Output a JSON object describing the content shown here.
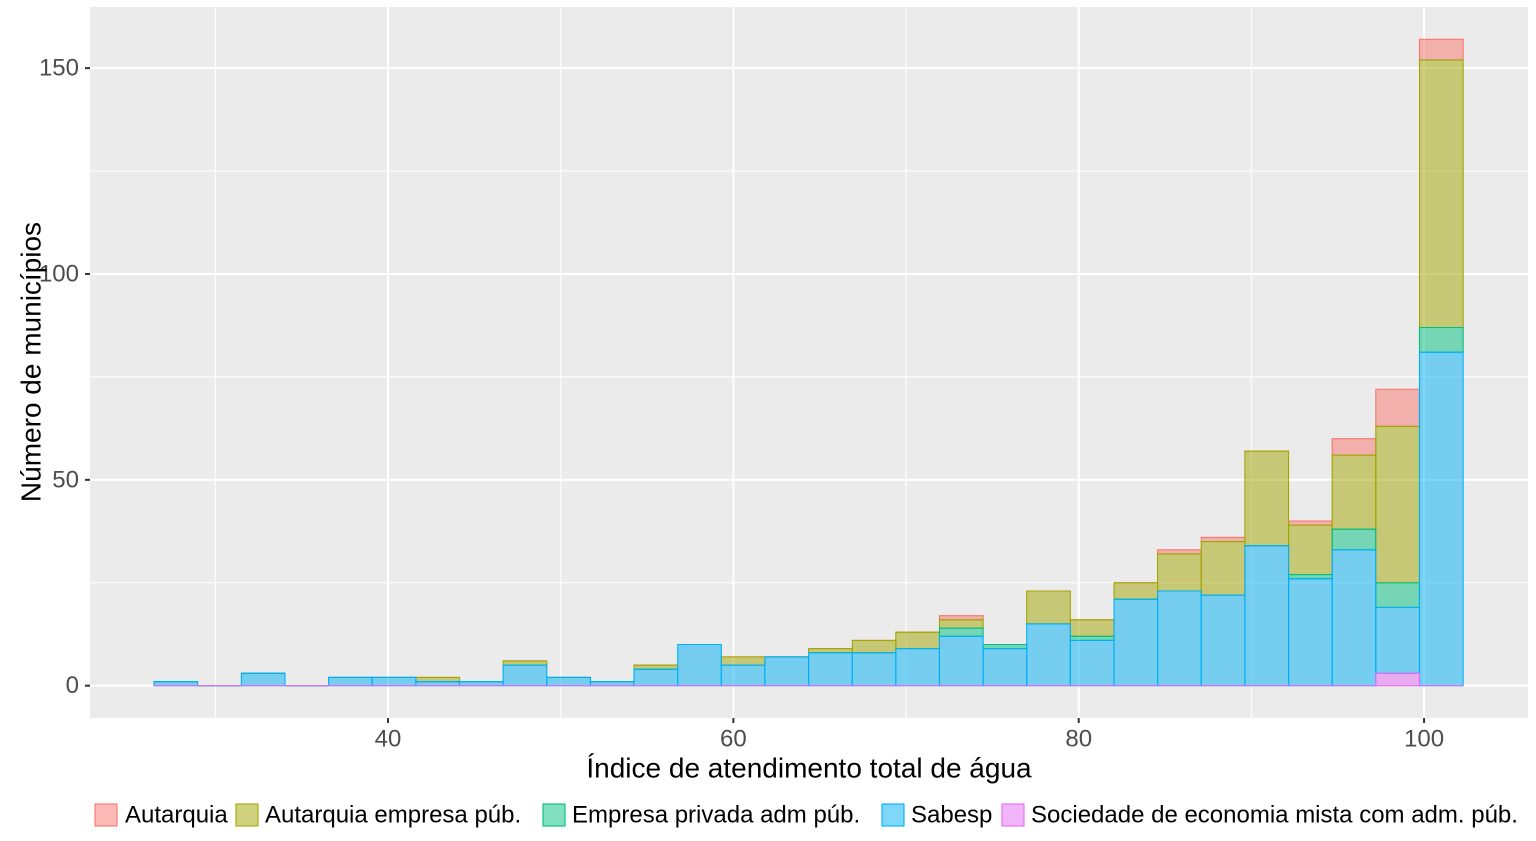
{
  "chart_data": {
    "type": "bar",
    "stacked": true,
    "xlabel": "Índice de atendimento total de água",
    "ylabel": "Número de municípios",
    "xlim": [
      22.74,
      106.02
    ],
    "ylim": [
      -7.85,
      164.85
    ],
    "x_ticks": [
      40,
      60,
      80,
      100
    ],
    "x_tick_labels": [
      "40",
      "60",
      "80",
      "100"
    ],
    "y_ticks": [
      0,
      50,
      100,
      150
    ],
    "y_tick_labels": [
      "0",
      "50",
      "100",
      "150"
    ],
    "grid": true,
    "legend": "bottom",
    "bin_width": 2.527,
    "x": [
      27.71,
      30.24,
      32.77,
      35.29,
      37.82,
      40.35,
      42.88,
      45.4,
      47.93,
      50.46,
      52.98,
      55.51,
      58.04,
      60.56,
      63.09,
      65.62,
      68.15,
      70.67,
      73.2,
      75.73,
      78.25,
      80.78,
      83.31,
      85.83,
      88.36,
      90.89,
      93.42,
      95.94,
      98.47,
      101.0
    ],
    "series": [
      {
        "name": "Autarquia",
        "color": "#F8766D",
        "values": [
          0,
          0,
          0,
          0,
          0,
          0,
          0,
          0,
          0,
          0,
          0,
          0,
          0,
          0,
          0,
          0,
          0,
          0,
          1,
          0,
          0,
          0,
          0,
          1,
          1,
          0,
          1,
          4,
          9,
          5
        ]
      },
      {
        "name": "Autarquia empresa púb.",
        "color": "#A3A500",
        "values": [
          0,
          0,
          0,
          0,
          0,
          0,
          1,
          0,
          1,
          0,
          0,
          1,
          0,
          2,
          0,
          1,
          3,
          4,
          2,
          0,
          8,
          4,
          4,
          9,
          13,
          23,
          12,
          18,
          38,
          65
        ]
      },
      {
        "name": "Empresa privada adm púb.",
        "color": "#00BF7D",
        "values": [
          0,
          0,
          0,
          0,
          0,
          0,
          0,
          0,
          0,
          0,
          0,
          0,
          0,
          0,
          0,
          0,
          0,
          0,
          2,
          1,
          0,
          1,
          0,
          0,
          0,
          0,
          1,
          5,
          6,
          6
        ]
      },
      {
        "name": "Sabesp",
        "color": "#00B0F6",
        "values": [
          1,
          0,
          3,
          0,
          2,
          2,
          1,
          1,
          5,
          2,
          1,
          4,
          10,
          5,
          7,
          8,
          8,
          9,
          12,
          9,
          15,
          11,
          21,
          23,
          22,
          34,
          26,
          33,
          16,
          81
        ]
      },
      {
        "name": "Sociedade de economia mista com adm. púb.",
        "color": "#E76BF3",
        "values": [
          0,
          0,
          0,
          0,
          0,
          0,
          0,
          0,
          0,
          0,
          0,
          0,
          0,
          0,
          0,
          0,
          0,
          0,
          0,
          0,
          0,
          0,
          0,
          0,
          0,
          0,
          0,
          0,
          3,
          0
        ]
      }
    ]
  }
}
